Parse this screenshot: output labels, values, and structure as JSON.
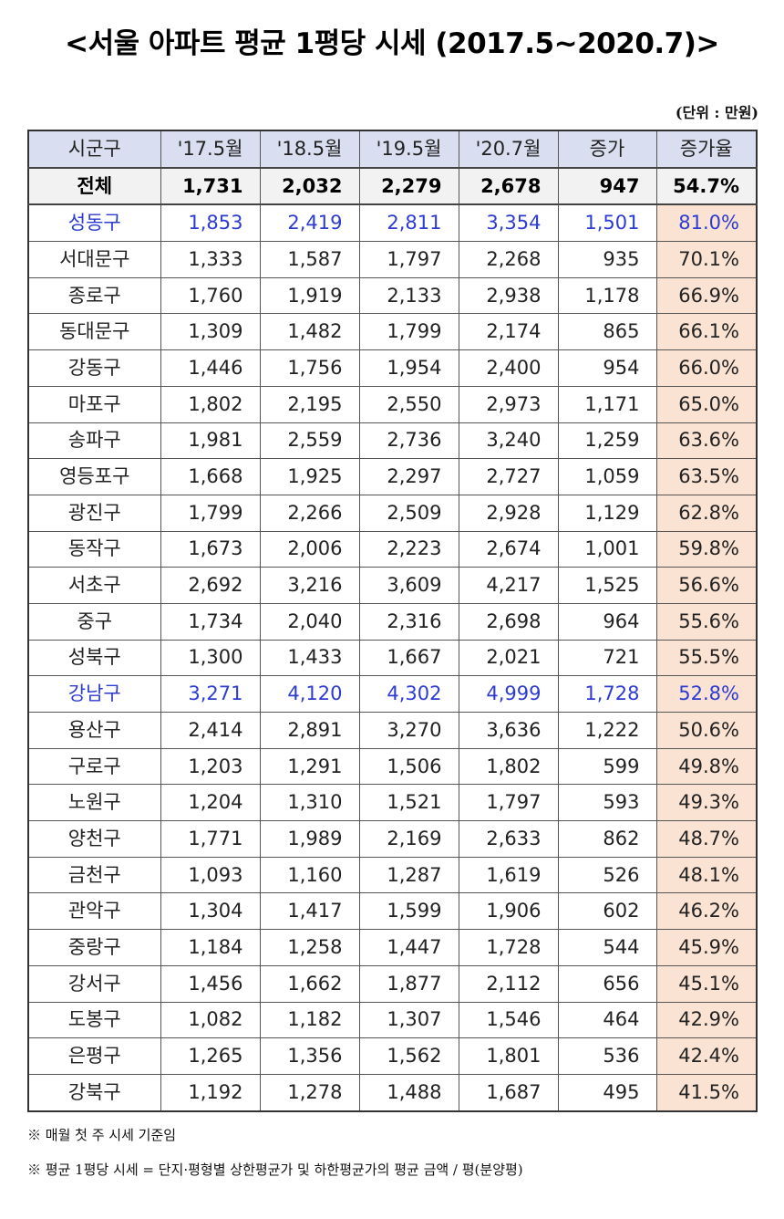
{
  "title": "<서울 아파트 평균 1평당 시세 (2017.5~2020.7)>",
  "unit": "(단위 : 만원)",
  "table": {
    "headers": [
      "시군구",
      "'17.5월",
      "'18.5월",
      "'19.5월",
      "'20.7월",
      "증가",
      "증가율"
    ],
    "total": {
      "name": "전체",
      "v1": "1,731",
      "v2": "2,032",
      "v3": "2,279",
      "v4": "2,678",
      "inc": "947",
      "rate": "54.7%"
    },
    "rows": [
      {
        "name": "성동구",
        "v1": "1,853",
        "v2": "2,419",
        "v3": "2,811",
        "v4": "3,354",
        "inc": "1,501",
        "rate": "81.0%",
        "highlight": true
      },
      {
        "name": "서대문구",
        "v1": "1,333",
        "v2": "1,587",
        "v3": "1,797",
        "v4": "2,268",
        "inc": "935",
        "rate": "70.1%"
      },
      {
        "name": "종로구",
        "v1": "1,760",
        "v2": "1,919",
        "v3": "2,133",
        "v4": "2,938",
        "inc": "1,178",
        "rate": "66.9%"
      },
      {
        "name": "동대문구",
        "v1": "1,309",
        "v2": "1,482",
        "v3": "1,799",
        "v4": "2,174",
        "inc": "865",
        "rate": "66.1%"
      },
      {
        "name": "강동구",
        "v1": "1,446",
        "v2": "1,756",
        "v3": "1,954",
        "v4": "2,400",
        "inc": "954",
        "rate": "66.0%"
      },
      {
        "name": "마포구",
        "v1": "1,802",
        "v2": "2,195",
        "v3": "2,550",
        "v4": "2,973",
        "inc": "1,171",
        "rate": "65.0%"
      },
      {
        "name": "송파구",
        "v1": "1,981",
        "v2": "2,559",
        "v3": "2,736",
        "v4": "3,240",
        "inc": "1,259",
        "rate": "63.6%"
      },
      {
        "name": "영등포구",
        "v1": "1,668",
        "v2": "1,925",
        "v3": "2,297",
        "v4": "2,727",
        "inc": "1,059",
        "rate": "63.5%"
      },
      {
        "name": "광진구",
        "v1": "1,799",
        "v2": "2,266",
        "v3": "2,509",
        "v4": "2,928",
        "inc": "1,129",
        "rate": "62.8%"
      },
      {
        "name": "동작구",
        "v1": "1,673",
        "v2": "2,006",
        "v3": "2,223",
        "v4": "2,674",
        "inc": "1,001",
        "rate": "59.8%"
      },
      {
        "name": "서초구",
        "v1": "2,692",
        "v2": "3,216",
        "v3": "3,609",
        "v4": "4,217",
        "inc": "1,525",
        "rate": "56.6%"
      },
      {
        "name": "중구",
        "v1": "1,734",
        "v2": "2,040",
        "v3": "2,316",
        "v4": "2,698",
        "inc": "964",
        "rate": "55.6%"
      },
      {
        "name": "성북구",
        "v1": "1,300",
        "v2": "1,433",
        "v3": "1,667",
        "v4": "2,021",
        "inc": "721",
        "rate": "55.5%"
      },
      {
        "name": "강남구",
        "v1": "3,271",
        "v2": "4,120",
        "v3": "4,302",
        "v4": "4,999",
        "inc": "1,728",
        "rate": "52.8%",
        "highlight": true
      },
      {
        "name": "용산구",
        "v1": "2,414",
        "v2": "2,891",
        "v3": "3,270",
        "v4": "3,636",
        "inc": "1,222",
        "rate": "50.6%"
      },
      {
        "name": "구로구",
        "v1": "1,203",
        "v2": "1,291",
        "v3": "1,506",
        "v4": "1,802",
        "inc": "599",
        "rate": "49.8%"
      },
      {
        "name": "노원구",
        "v1": "1,204",
        "v2": "1,310",
        "v3": "1,521",
        "v4": "1,797",
        "inc": "593",
        "rate": "49.3%"
      },
      {
        "name": "양천구",
        "v1": "1,771",
        "v2": "1,989",
        "v3": "2,169",
        "v4": "2,633",
        "inc": "862",
        "rate": "48.7%"
      },
      {
        "name": "금천구",
        "v1": "1,093",
        "v2": "1,160",
        "v3": "1,287",
        "v4": "1,619",
        "inc": "526",
        "rate": "48.1%"
      },
      {
        "name": "관악구",
        "v1": "1,304",
        "v2": "1,417",
        "v3": "1,599",
        "v4": "1,906",
        "inc": "602",
        "rate": "46.2%"
      },
      {
        "name": "중랑구",
        "v1": "1,184",
        "v2": "1,258",
        "v3": "1,447",
        "v4": "1,728",
        "inc": "544",
        "rate": "45.9%"
      },
      {
        "name": "강서구",
        "v1": "1,456",
        "v2": "1,662",
        "v3": "1,877",
        "v4": "2,112",
        "inc": "656",
        "rate": "45.1%"
      },
      {
        "name": "도봉구",
        "v1": "1,082",
        "v2": "1,182",
        "v3": "1,307",
        "v4": "1,546",
        "inc": "464",
        "rate": "42.9%"
      },
      {
        "name": "은평구",
        "v1": "1,265",
        "v2": "1,356",
        "v3": "1,562",
        "v4": "1,801",
        "inc": "536",
        "rate": "42.4%"
      },
      {
        "name": "강북구",
        "v1": "1,192",
        "v2": "1,278",
        "v3": "1,488",
        "v4": "1,687",
        "inc": "495",
        "rate": "41.5%"
      }
    ]
  },
  "notes": [
    "※ 매월 첫 주 시세 기준임",
    "※ 평균 1평당 시세 = 단지·평형별 상한평균가 및 하한평균가의 평균 금액 / 평(분양평)"
  ],
  "colors": {
    "header_bg": "#d9dff0",
    "rate_bg": "#fbe3d3",
    "highlight_text": "#2c3bd1",
    "total_bg": "#f2f2f2"
  }
}
